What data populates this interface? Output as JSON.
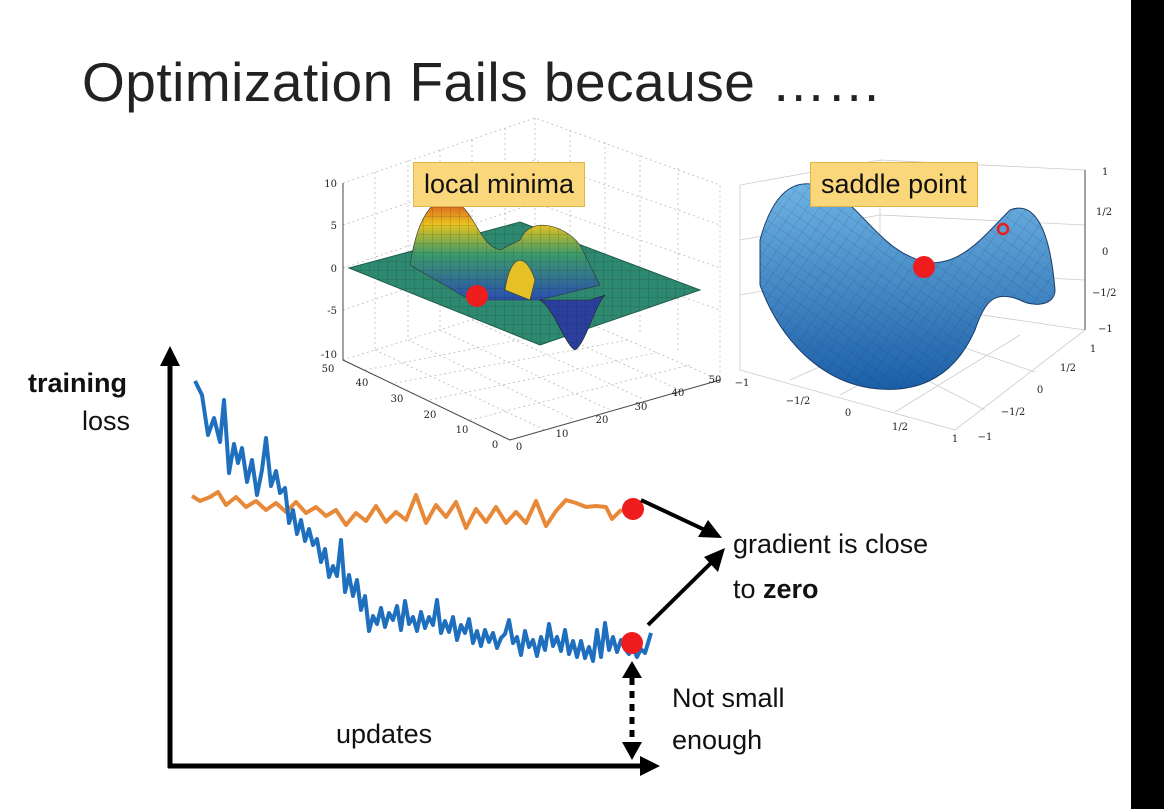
{
  "title": "Optimization Fails because ……",
  "labels": {
    "local_minima": "local minima",
    "saddle_point": "saddle point",
    "y_axis_bold": "training",
    "y_axis_rest": "loss",
    "x_axis": "updates",
    "gradient_line1": "gradient is close",
    "gradient_line2_pre": "to ",
    "gradient_line2_bold": "zero",
    "not_small_line1": "Not small",
    "not_small_line2": "enough"
  },
  "local_minima_plot": {
    "z_ticks": [
      "10",
      "5",
      "0",
      "-5",
      "-10"
    ],
    "y_ticks": [
      "50",
      "40",
      "30",
      "20",
      "10",
      "0"
    ],
    "x_ticks": [
      "0",
      "10",
      "20",
      "30",
      "40",
      "50"
    ]
  },
  "saddle_plot": {
    "z_ticks": [
      "1",
      "1/2",
      "0",
      "−1/2",
      "−1"
    ],
    "x_ticks": [
      "−1",
      "−1/2",
      "0",
      "1/2",
      "1"
    ],
    "y_ticks": [
      "1",
      "1/2",
      "0",
      "−1/2",
      "−1"
    ]
  },
  "colors": {
    "blue_curve": "#1f6fbf",
    "orange_curve": "#e8893a",
    "red_dot": "#ee1c1c",
    "label_bg": "#fbd77b"
  }
}
